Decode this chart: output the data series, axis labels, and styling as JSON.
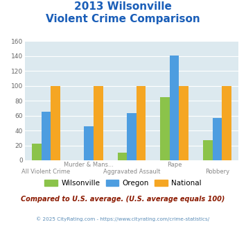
{
  "title_line1": "2013 Wilsonville",
  "title_line2": "Violent Crime Comparison",
  "cat_labels_top": [
    "",
    "Murder & Mans...",
    "",
    "Rape",
    ""
  ],
  "cat_labels_bot": [
    "All Violent Crime",
    "",
    "Aggravated Assault",
    "",
    "Robbery"
  ],
  "wilsonville": [
    22,
    0,
    10,
    85,
    27
  ],
  "oregon": [
    65,
    46,
    63,
    141,
    57
  ],
  "national": [
    100,
    100,
    100,
    100,
    100
  ],
  "color_wilsonville": "#8bc34a",
  "color_oregon": "#4d9de0",
  "color_national": "#f5a623",
  "ylim": [
    0,
    160
  ],
  "yticks": [
    0,
    20,
    40,
    60,
    80,
    100,
    120,
    140,
    160
  ],
  "bg_color": "#dce9ef",
  "title_color": "#1a5eb8",
  "footer_text": "Compared to U.S. average. (U.S. average equals 100)",
  "copyright_text": "© 2025 CityRating.com - https://www.cityrating.com/crime-statistics/",
  "footer_color": "#8b1a00",
  "copyright_color": "#5b8db8",
  "legend_labels": [
    "Wilsonville",
    "Oregon",
    "National"
  ]
}
